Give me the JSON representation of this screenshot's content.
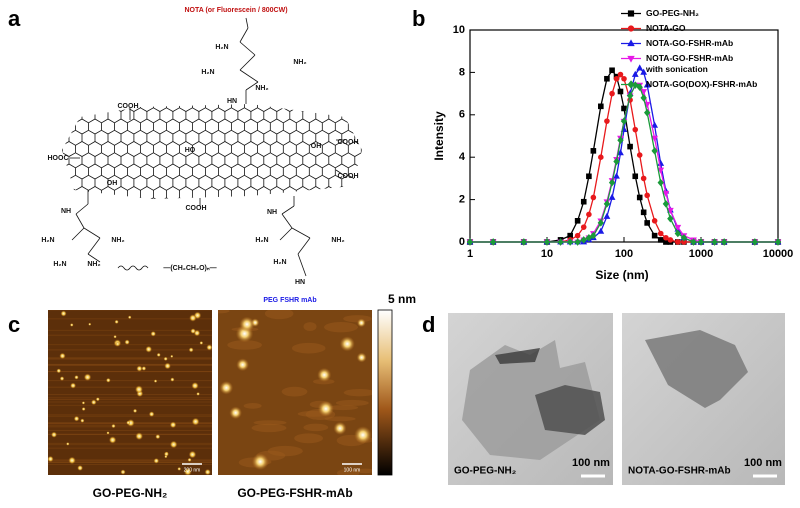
{
  "panel_labels": [
    "a",
    "b",
    "c",
    "d"
  ],
  "structure_labels": [
    "NOTA (or Fluorescein / 800CW)",
    "H₂N",
    "NH₂",
    "H₂N",
    "NH₂",
    "HN",
    "COOH",
    "COOH",
    "HOOC",
    "HO",
    "OH",
    "OH",
    "COOH",
    "COOH",
    "NH",
    "H₂N",
    "NH₂",
    "H₂N",
    "NH₂",
    "NH",
    "H₂N",
    "NH₂",
    "H₂N",
    "HN",
    "PEG FSHR mAb",
    "—(CH₂CH₂O)ₙ—"
  ],
  "chart_data": {
    "type": "line",
    "x_label": "Size (nm)",
    "y_label": "Intensity",
    "xscale": "log",
    "legend": "upper right",
    "xlim": [
      1,
      10000
    ],
    "xticks": [
      1,
      10,
      100,
      1000,
      10000
    ],
    "ylim": [
      0,
      10
    ],
    "yticks": [
      0,
      2,
      4,
      6,
      8,
      10
    ],
    "x": [
      1,
      2,
      5,
      10,
      15,
      20,
      25,
      30,
      35,
      40,
      50,
      60,
      70,
      80,
      90,
      100,
      120,
      140,
      160,
      180,
      200,
      250,
      300,
      350,
      400,
      500,
      600,
      800,
      1000,
      1500,
      2000,
      5000,
      10000
    ],
    "series": [
      {
        "name": "GO-PEG-NH₂",
        "color": "#000000",
        "marker": "square",
        "values": [
          0,
          0,
          0,
          0,
          0.1,
          0.3,
          1.0,
          1.9,
          3.1,
          4.3,
          6.4,
          7.7,
          8.1,
          7.8,
          7.1,
          6.3,
          4.5,
          3.1,
          2.1,
          1.4,
          0.9,
          0.3,
          0.1,
          0,
          0,
          0,
          0,
          0,
          0,
          0,
          0,
          0,
          0
        ]
      },
      {
        "name": "NOTA-GO",
        "color": "#e8191c",
        "marker": "circle",
        "values": [
          0,
          0,
          0,
          0,
          0,
          0.1,
          0.3,
          0.7,
          1.3,
          2.1,
          4.0,
          5.7,
          7.0,
          7.7,
          7.9,
          7.7,
          6.7,
          5.3,
          4.1,
          3.0,
          2.2,
          1.0,
          0.4,
          0.2,
          0.1,
          0,
          0,
          0,
          0,
          0,
          0,
          0,
          0
        ]
      },
      {
        "name": "NOTA-GO-FSHR-mAb",
        "color": "#1a1ae6",
        "marker": "triangle-up",
        "values": [
          0,
          0,
          0,
          0,
          0,
          0,
          0,
          0,
          0.1,
          0.2,
          0.5,
          1.2,
          2.1,
          3.1,
          4.2,
          5.3,
          7.0,
          7.9,
          8.2,
          8.0,
          7.4,
          5.5,
          3.7,
          2.4,
          1.5,
          0.6,
          0.2,
          0,
          0,
          0,
          0,
          0,
          0
        ]
      },
      {
        "name": "NOTA-GO-FSHR-mAb\nwith sonication",
        "color": "#e619e6",
        "marker": "triangle-down",
        "values": [
          0,
          0,
          0,
          0,
          0,
          0,
          0,
          0.1,
          0.2,
          0.4,
          1.0,
          1.9,
          2.9,
          3.9,
          4.9,
          5.7,
          6.9,
          7.4,
          7.4,
          7.1,
          6.5,
          4.9,
          3.4,
          2.3,
          1.5,
          0.7,
          0.3,
          0.1,
          0,
          0,
          0,
          0,
          0
        ]
      },
      {
        "name": "NOTA-GO(DOX)-FSHR-mAb",
        "color": "#1a9a3a",
        "marker": "diamond",
        "values": [
          0,
          0,
          0,
          0,
          0,
          0,
          0,
          0.1,
          0.2,
          0.3,
          0.9,
          1.8,
          2.8,
          3.8,
          4.8,
          5.7,
          6.9,
          7.4,
          7.3,
          6.8,
          6.1,
          4.3,
          2.8,
          1.8,
          1.1,
          0.4,
          0.2,
          0,
          0,
          0,
          0,
          0,
          0
        ]
      }
    ]
  },
  "afm": {
    "colorbar_label": "5 nm",
    "images": [
      {
        "caption": "GO-PEG-NH₂",
        "scale_bar": "200 nm"
      },
      {
        "caption": "GO-PEG-FSHR-mAb",
        "scale_bar": "100 nm"
      }
    ]
  },
  "tem": {
    "images": [
      {
        "caption": "GO-PEG-NH₂",
        "scale_bar": "100 nm"
      },
      {
        "caption": "NOTA-GO-FSHR-mAb",
        "scale_bar": "100 nm"
      }
    ]
  }
}
